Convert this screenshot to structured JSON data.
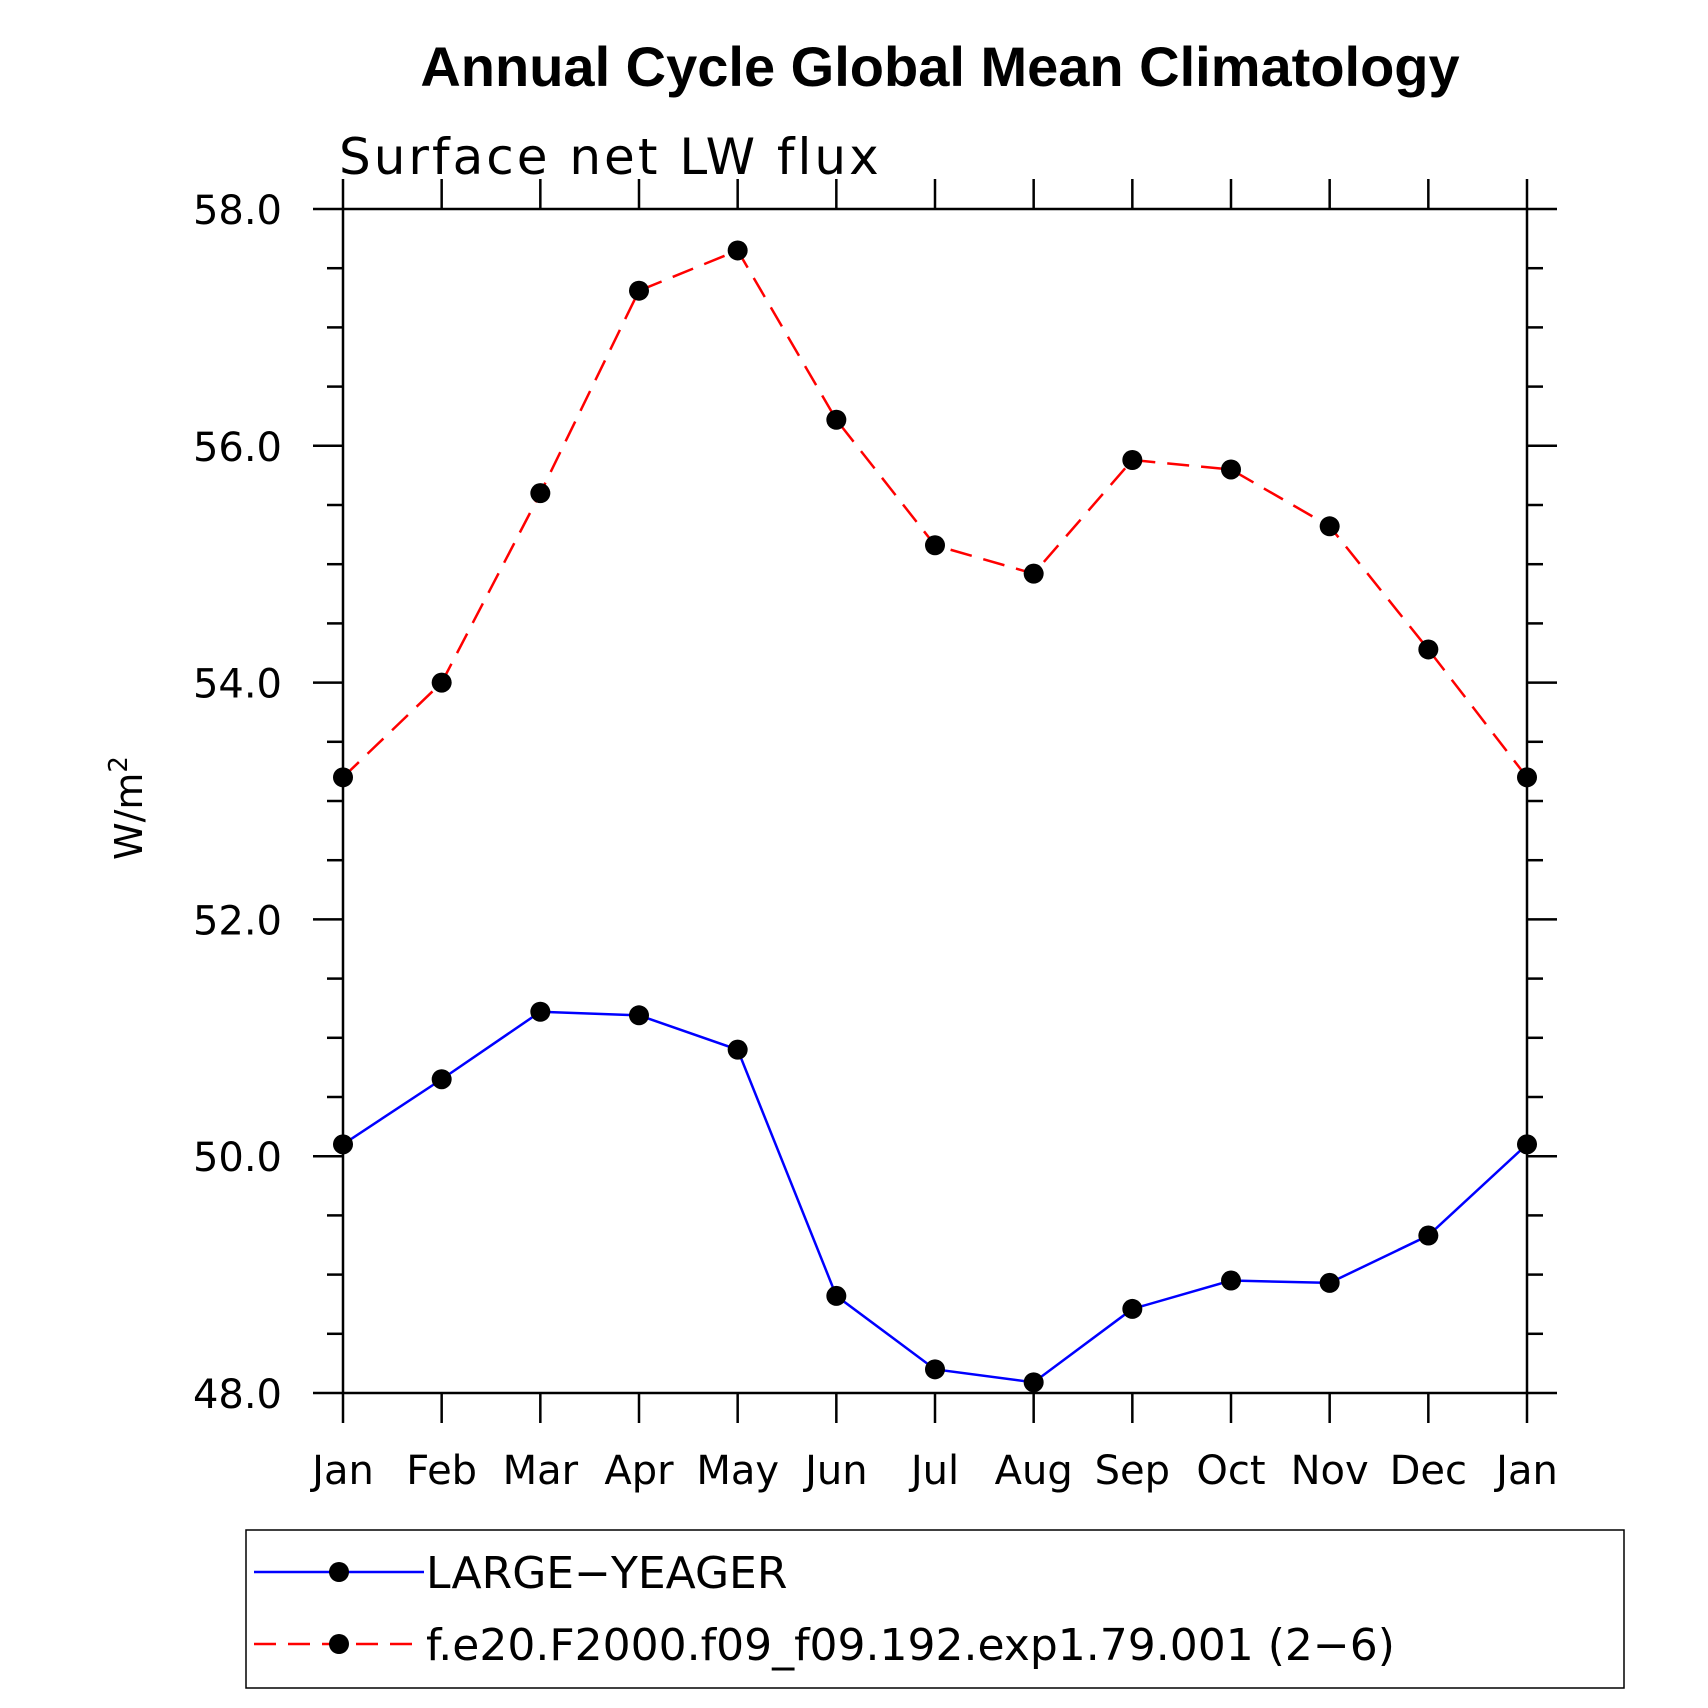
{
  "chart_data": {
    "type": "line",
    "title": "Annual Cycle Global Mean Climatology",
    "subtitle": "Surface net LW flux",
    "ylabel": "W/m",
    "ylabel_superscript": "2",
    "xlabel": "",
    "categories": [
      "Jan",
      "Feb",
      "Mar",
      "Apr",
      "May",
      "Jun",
      "Jul",
      "Aug",
      "Sep",
      "Oct",
      "Nov",
      "Dec",
      "Jan"
    ],
    "ylim": [
      48.0,
      58.0
    ],
    "yticks": [
      "58.0",
      "56.0",
      "54.0",
      "52.0",
      "50.0",
      "48.0"
    ],
    "ytick_values": [
      58,
      56,
      54,
      52,
      50,
      48
    ],
    "grid": false,
    "legend_position": "bottom",
    "series": [
      {
        "name": "LARGE−YEAGER",
        "color": "#0000ff",
        "dash": "solid",
        "marker": "filled-circle",
        "values": [
          50.1,
          50.65,
          51.22,
          51.19,
          50.9,
          48.82,
          48.2,
          48.09,
          48.71,
          48.95,
          48.93,
          49.33,
          50.1
        ]
      },
      {
        "name": "f.e20.F2000.f09_f09.192.exp1.79.001 (2−6)",
        "color": "#ff0000",
        "dash": "dashed",
        "marker": "filled-circle",
        "values": [
          53.2,
          54.0,
          55.6,
          57.31,
          57.65,
          56.22,
          55.16,
          54.92,
          55.88,
          55.8,
          55.32,
          54.28,
          53.2
        ]
      }
    ]
  }
}
